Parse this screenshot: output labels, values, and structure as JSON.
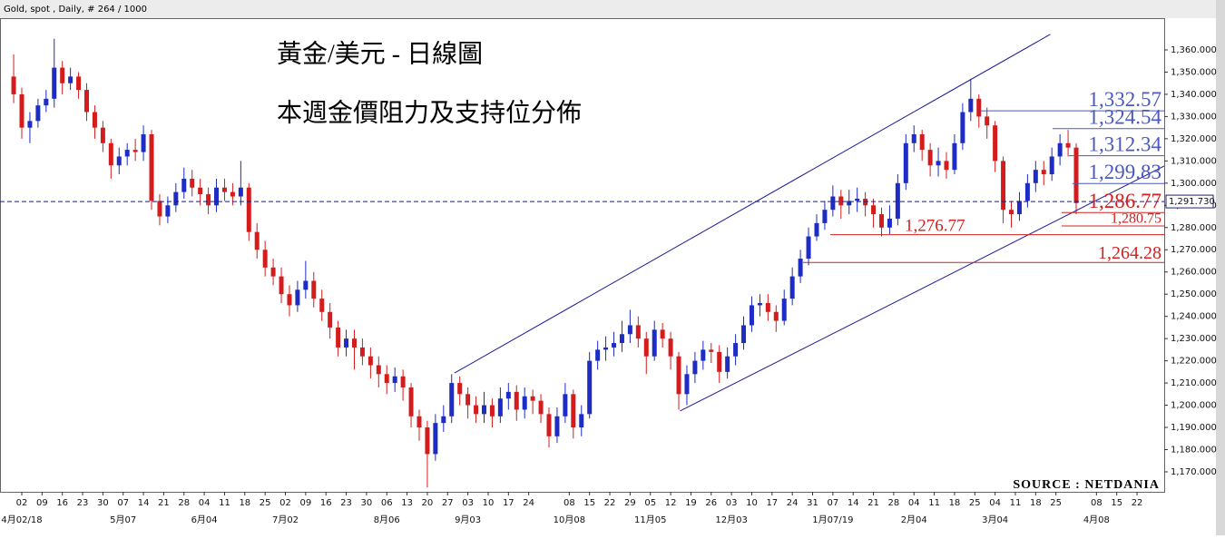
{
  "chart_data": {
    "type": "candlestick",
    "header": "Gold, spot , Daily, # 264 / 1000",
    "title": "黃金/美元 - 日線圖",
    "subtitle": "本週金價阻力及支持位分佈",
    "source": "SOURCE : NETDANIA",
    "up_color": "#1c2cc4",
    "down_color": "#d41c1c",
    "xlim": [
      -5.37,
      281.7
    ],
    "ylim": [
      1161,
      1374.3
    ],
    "yticks": [
      {
        "value": 1170,
        "label": "1,170.000"
      },
      {
        "value": 1180,
        "label": "1,180.000"
      },
      {
        "value": 1190,
        "label": "1,190.000"
      },
      {
        "value": 1200,
        "label": "1,200.000"
      },
      {
        "value": 1210,
        "label": "1,210.000"
      },
      {
        "value": 1220,
        "label": "1,220.000"
      },
      {
        "value": 1230,
        "label": "1,230.000"
      },
      {
        "value": 1240,
        "label": "1,240.000"
      },
      {
        "value": 1250,
        "label": "1,250.000"
      },
      {
        "value": 1260,
        "label": "1,260.000"
      },
      {
        "value": 1270,
        "label": "1,270.000"
      },
      {
        "value": 1280,
        "label": "1,280.000"
      },
      {
        "value": 1290,
        "label": "1,290.000"
      },
      {
        "value": 1300,
        "label": "1,300.000"
      },
      {
        "value": 1310,
        "label": "1,310.000"
      },
      {
        "value": 1320,
        "label": "1,320.000"
      },
      {
        "value": 1330,
        "label": "1,330.000"
      },
      {
        "value": 1340,
        "label": "1,340.000"
      },
      {
        "value": 1350,
        "label": "1,350.000"
      },
      {
        "value": 1360,
        "label": "1,360.000"
      }
    ],
    "xticks": [
      {
        "value": 0,
        "label": "02"
      },
      {
        "value": 5,
        "label": "09"
      },
      {
        "value": 10,
        "label": "16"
      },
      {
        "value": 15,
        "label": "23"
      },
      {
        "value": 20,
        "label": "30"
      },
      {
        "value": 25,
        "label": "07"
      },
      {
        "value": 30,
        "label": "14"
      },
      {
        "value": 35,
        "label": "21"
      },
      {
        "value": 40,
        "label": "28"
      },
      {
        "value": 45,
        "label": "04"
      },
      {
        "value": 50,
        "label": "11"
      },
      {
        "value": 55,
        "label": "18"
      },
      {
        "value": 60,
        "label": "25"
      },
      {
        "value": 65,
        "label": "02"
      },
      {
        "value": 70,
        "label": "09"
      },
      {
        "value": 75,
        "label": "16"
      },
      {
        "value": 80,
        "label": "23"
      },
      {
        "value": 85,
        "label": "30"
      },
      {
        "value": 90,
        "label": "06"
      },
      {
        "value": 95,
        "label": "13"
      },
      {
        "value": 100,
        "label": "20"
      },
      {
        "value": 105,
        "label": "27"
      },
      {
        "value": 110,
        "label": "03"
      },
      {
        "value": 115,
        "label": "10"
      },
      {
        "value": 120,
        "label": "17"
      },
      {
        "value": 125,
        "label": "24"
      },
      {
        "value": 135,
        "label": "08"
      },
      {
        "value": 140,
        "label": "15"
      },
      {
        "value": 145,
        "label": "22"
      },
      {
        "value": 150,
        "label": "29"
      },
      {
        "value": 155,
        "label": "05"
      },
      {
        "value": 160,
        "label": "12"
      },
      {
        "value": 165,
        "label": "19"
      },
      {
        "value": 170,
        "label": "26"
      },
      {
        "value": 175,
        "label": "03"
      },
      {
        "value": 180,
        "label": "10"
      },
      {
        "value": 185,
        "label": "17"
      },
      {
        "value": 190,
        "label": "24"
      },
      {
        "value": 195,
        "label": "31"
      },
      {
        "value": 200,
        "label": "07"
      },
      {
        "value": 205,
        "label": "14"
      },
      {
        "value": 210,
        "label": "21"
      },
      {
        "value": 215,
        "label": "28"
      },
      {
        "value": 220,
        "label": "04"
      },
      {
        "value": 225,
        "label": "11"
      },
      {
        "value": 230,
        "label": "18"
      },
      {
        "value": 235,
        "label": "25"
      },
      {
        "value": 240,
        "label": "04"
      },
      {
        "value": 245,
        "label": "11"
      },
      {
        "value": 250,
        "label": "18"
      },
      {
        "value": 255,
        "label": "25"
      },
      {
        "value": 265,
        "label": "08"
      },
      {
        "value": 270,
        "label": "15"
      },
      {
        "value": 275,
        "label": "22"
      }
    ],
    "month_labels": [
      {
        "value": 0,
        "label": "4月02/18"
      },
      {
        "value": 25,
        "label": "5月07"
      },
      {
        "value": 45,
        "label": "6月04"
      },
      {
        "value": 65,
        "label": "7月02"
      },
      {
        "value": 90,
        "label": "8月06"
      },
      {
        "value": 110,
        "label": "9月03"
      },
      {
        "value": 135,
        "label": "10月08"
      },
      {
        "value": 155,
        "label": "11月05"
      },
      {
        "value": 175,
        "label": "12月03"
      },
      {
        "value": 200,
        "label": "1月07/19"
      },
      {
        "value": 220,
        "label": "2月04"
      },
      {
        "value": 240,
        "label": "3月04"
      },
      {
        "value": 265,
        "label": "4月08"
      }
    ],
    "x": [
      -2,
      0,
      2,
      4,
      6,
      8,
      10,
      12,
      14,
      16,
      18,
      20,
      22,
      24,
      26,
      28,
      30,
      32,
      34,
      36,
      38,
      40,
      42,
      44,
      46,
      48,
      50,
      52,
      54,
      56,
      58,
      60,
      62,
      64,
      66,
      68,
      70,
      72,
      74,
      76,
      78,
      80,
      82,
      84,
      86,
      88,
      90,
      92,
      94,
      96,
      98,
      100,
      102,
      104,
      106,
      108,
      110,
      112,
      114,
      116,
      118,
      120,
      122,
      124,
      126,
      128,
      130,
      132,
      134,
      136,
      138,
      140,
      142,
      144,
      146,
      148,
      150,
      152,
      154,
      156,
      158,
      160,
      162,
      164,
      166,
      168,
      170,
      172,
      174,
      176,
      178,
      180,
      182,
      184,
      186,
      188,
      190,
      192,
      194,
      196,
      198,
      200,
      202,
      204,
      206,
      208,
      210,
      212,
      214,
      216,
      218,
      220,
      222,
      224,
      226,
      228,
      230,
      232,
      234,
      236,
      238,
      240,
      242,
      244,
      246,
      248,
      250,
      252,
      254,
      256,
      258,
      260
    ],
    "open": [
      1348,
      1340,
      1325,
      1328,
      1335,
      1338,
      1352,
      1345,
      1348,
      1342,
      1332,
      1325,
      1318,
      1308,
      1312,
      1315,
      1314,
      1322,
      1292,
      1285,
      1290,
      1296,
      1302,
      1298,
      1295,
      1290,
      1298,
      1296,
      1294,
      1298,
      1278,
      1270,
      1262,
      1258,
      1250,
      1245,
      1252,
      1256,
      1248,
      1242,
      1235,
      1226,
      1230,
      1226,
      1222,
      1218,
      1214,
      1210,
      1213,
      1208,
      1195,
      1190,
      1178,
      1192,
      1195,
      1210,
      1205,
      1200,
      1196,
      1200,
      1195,
      1203,
      1206,
      1198,
      1204,
      1202,
      1196,
      1186,
      1195,
      1205,
      1190,
      1196,
      1220,
      1225,
      1226,
      1228,
      1232,
      1236,
      1230,
      1222,
      1234,
      1230,
      1222,
      1205,
      1214,
      1220,
      1225,
      1224,
      1215,
      1222,
      1228,
      1236,
      1245,
      1246,
      1242,
      1238,
      1248,
      1258,
      1266,
      1276,
      1282,
      1288,
      1294,
      1290,
      1292,
      1293,
      1290,
      1286,
      1280,
      1284,
      1300,
      1318,
      1322,
      1315,
      1308,
      1310,
      1306,
      1318,
      1332,
      1338,
      1330,
      1326,
      1310,
      1288,
      1286,
      1292,
      1300,
      1306,
      1304,
      1312,
      1318,
      1316
    ],
    "high": [
      1358,
      1343,
      1332,
      1338,
      1342,
      1365,
      1355,
      1352,
      1350,
      1345,
      1335,
      1328,
      1320,
      1316,
      1318,
      1320,
      1326,
      1324,
      1295,
      1294,
      1300,
      1307,
      1306,
      1302,
      1298,
      1302,
      1302,
      1300,
      1310,
      1300,
      1282,
      1274,
      1266,
      1262,
      1254,
      1256,
      1265,
      1260,
      1252,
      1246,
      1238,
      1234,
      1234,
      1230,
      1226,
      1222,
      1218,
      1217,
      1216,
      1210,
      1198,
      1193,
      1196,
      1200,
      1214,
      1213,
      1208,
      1204,
      1206,
      1203,
      1208,
      1210,
      1209,
      1208,
      1207,
      1205,
      1199,
      1199,
      1210,
      1207,
      1200,
      1224,
      1229,
      1231,
      1233,
      1238,
      1243,
      1240,
      1233,
      1238,
      1237,
      1233,
      1224,
      1218,
      1224,
      1229,
      1228,
      1227,
      1226,
      1232,
      1240,
      1249,
      1250,
      1250,
      1245,
      1252,
      1262,
      1270,
      1280,
      1286,
      1292,
      1299,
      1297,
      1297,
      1298,
      1296,
      1293,
      1289,
      1290,
      1304,
      1322,
      1326,
      1324,
      1318,
      1316,
      1314,
      1322,
      1336,
      1347,
      1340,
      1334,
      1328,
      1312,
      1292,
      1296,
      1304,
      1310,
      1310,
      1316,
      1322,
      1324,
      1318
    ],
    "low": [
      1336,
      1320,
      1318,
      1325,
      1332,
      1334,
      1340,
      1342,
      1338,
      1328,
      1320,
      1314,
      1302,
      1304,
      1308,
      1310,
      1310,
      1288,
      1281,
      1282,
      1287,
      1293,
      1294,
      1290,
      1286,
      1287,
      1292,
      1290,
      1290,
      1274,
      1266,
      1258,
      1254,
      1246,
      1240,
      1242,
      1248,
      1244,
      1238,
      1230,
      1222,
      1222,
      1216,
      1218,
      1212,
      1208,
      1205,
      1206,
      1202,
      1190,
      1184,
      1163,
      1175,
      1188,
      1192,
      1200,
      1194,
      1192,
      1192,
      1190,
      1192,
      1198,
      1193,
      1194,
      1196,
      1192,
      1181,
      1183,
      1192,
      1185,
      1186,
      1194,
      1216,
      1220,
      1222,
      1224,
      1228,
      1226,
      1214,
      1220,
      1226,
      1216,
      1198,
      1200,
      1210,
      1216,
      1219,
      1210,
      1212,
      1218,
      1225,
      1233,
      1240,
      1238,
      1233,
      1236,
      1245,
      1255,
      1263,
      1274,
      1279,
      1285,
      1284,
      1286,
      1287,
      1285,
      1280,
      1276,
      1277,
      1281,
      1297,
      1314,
      1310,
      1303,
      1303,
      1302,
      1304,
      1315,
      1328,
      1325,
      1320,
      1305,
      1282,
      1280,
      1283,
      1289,
      1296,
      1299,
      1301,
      1308,
      1312,
      1286
    ],
    "close": [
      1340,
      1325,
      1328,
      1335,
      1338,
      1352,
      1345,
      1348,
      1342,
      1332,
      1325,
      1318,
      1308,
      1312,
      1315,
      1314,
      1322,
      1292,
      1285,
      1290,
      1296,
      1302,
      1298,
      1295,
      1290,
      1298,
      1296,
      1294,
      1298,
      1278,
      1270,
      1262,
      1258,
      1250,
      1245,
      1252,
      1256,
      1248,
      1242,
      1235,
      1226,
      1230,
      1226,
      1222,
      1218,
      1214,
      1210,
      1213,
      1208,
      1195,
      1190,
      1178,
      1192,
      1195,
      1210,
      1205,
      1200,
      1196,
      1200,
      1195,
      1203,
      1206,
      1198,
      1204,
      1202,
      1196,
      1186,
      1195,
      1205,
      1190,
      1196,
      1220,
      1225,
      1226,
      1228,
      1232,
      1236,
      1230,
      1222,
      1234,
      1230,
      1222,
      1205,
      1214,
      1220,
      1225,
      1224,
      1215,
      1222,
      1228,
      1236,
      1245,
      1246,
      1242,
      1238,
      1248,
      1258,
      1266,
      1276,
      1282,
      1288,
      1294,
      1290,
      1292,
      1293,
      1290,
      1286,
      1280,
      1284,
      1300,
      1318,
      1322,
      1315,
      1308,
      1310,
      1306,
      1318,
      1332,
      1338,
      1330,
      1326,
      1310,
      1288,
      1286,
      1292,
      1300,
      1306,
      1304,
      1312,
      1318,
      1316,
      1291
    ],
    "trend_lines": [
      {
        "x": [
          106.7,
          253.6
        ],
        "y": [
          1214.5,
          1367
        ]
      },
      {
        "x": [
          162.3,
          281.7
        ],
        "y": [
          1197.4,
          1307.7
        ]
      }
    ],
    "trend_color": "#1c1c9c",
    "levels": [
      {
        "value": 1332.57,
        "label": "1,332.57",
        "color": "#4a58c0"
      },
      {
        "value": 1324.54,
        "label": "1,324.54",
        "color": "#4a58c0"
      },
      {
        "value": 1312.34,
        "label": "1,312.34",
        "color": "#4a58c0"
      },
      {
        "value": 1299.83,
        "label": "1,299.83",
        "color": "#4a58c0"
      },
      {
        "value": 1286.77,
        "label": "1,286.77",
        "color": "#d42020"
      },
      {
        "value": 1280.75,
        "label": "1,280.75",
        "color": "#d42020"
      },
      {
        "value": 1276.77,
        "label": "1,276.77",
        "color": "#d42020"
      },
      {
        "value": 1264.28,
        "label": "1,264.28",
        "color": "#d42020"
      }
    ],
    "last_price": {
      "value": 1291.73,
      "label": "1,291.730",
      "color": "#1c1c7c"
    }
  }
}
